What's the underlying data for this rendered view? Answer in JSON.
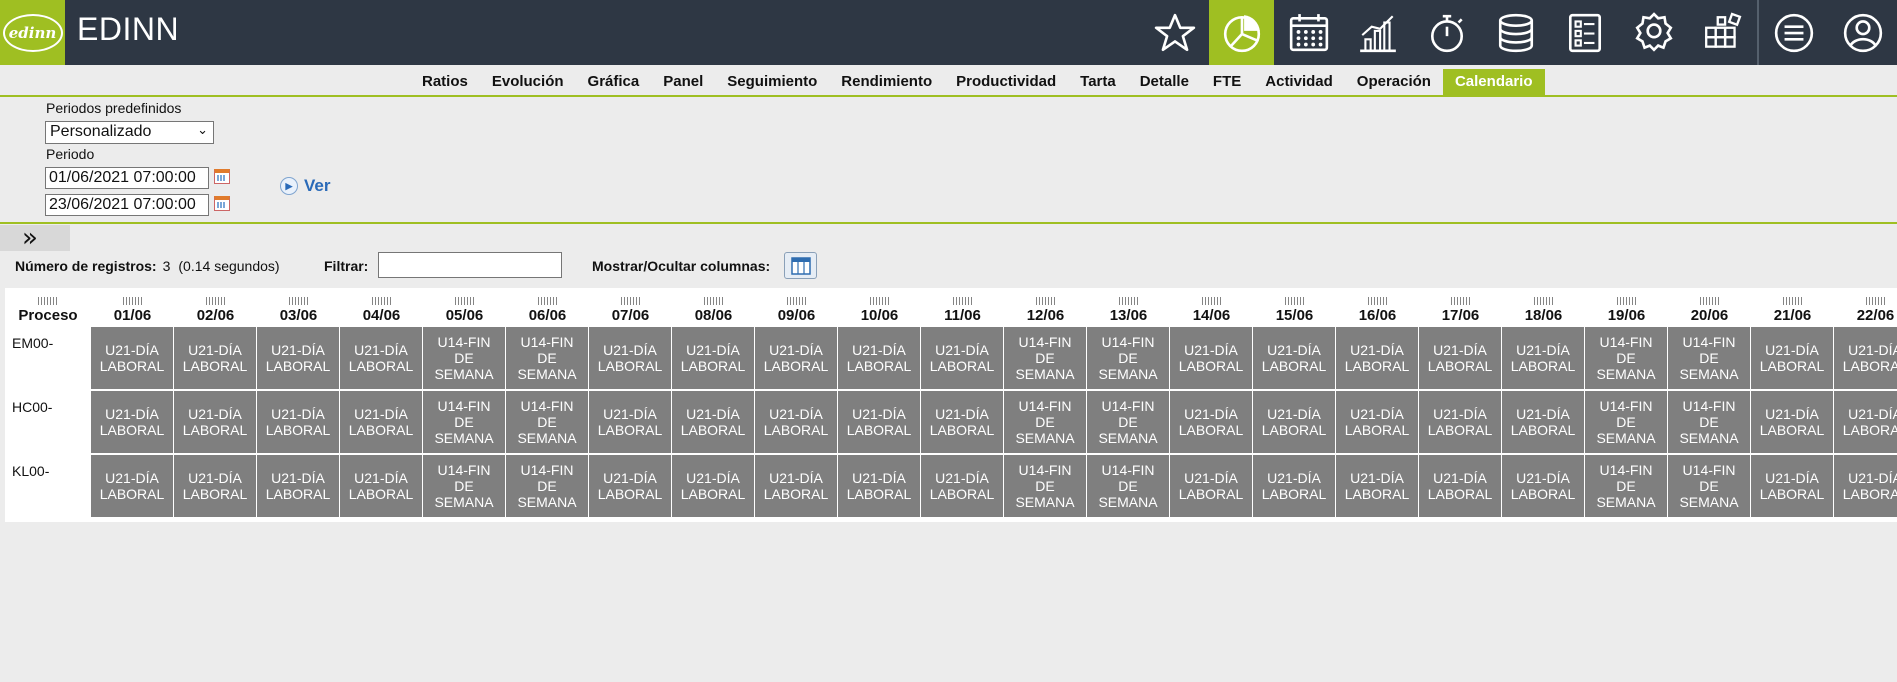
{
  "app": {
    "logo_text": "edinn",
    "title": "EDINN"
  },
  "topbar_icons": [
    {
      "name": "star-icon",
      "active": false
    },
    {
      "name": "pie-chart-icon",
      "active": true
    },
    {
      "name": "calendar-icon",
      "active": false
    },
    {
      "name": "bar-chart-icon",
      "active": false
    },
    {
      "name": "stopwatch-icon",
      "active": false
    },
    {
      "name": "database-icon",
      "active": false
    },
    {
      "name": "checklist-icon",
      "active": false
    },
    {
      "name": "award-icon",
      "active": false
    },
    {
      "name": "grid-blocks-icon",
      "active": false
    },
    {
      "name": "menu-icon",
      "active": false
    },
    {
      "name": "user-icon",
      "active": false
    }
  ],
  "tabs": [
    "Ratios",
    "Evolución",
    "Gráfica",
    "Panel",
    "Seguimiento",
    "Rendimiento",
    "Productividad",
    "Tarta",
    "Detalle",
    "FTE",
    "Actividad",
    "Operación",
    "Calendario"
  ],
  "active_tab": "Calendario",
  "filters": {
    "periodos_label": "Periodos predefinidos",
    "periodos_value": "Personalizado",
    "periodo_label": "Periodo",
    "start": "01/06/2021 07:00:00",
    "end": "23/06/2021 07:00:00",
    "ver_label": "Ver"
  },
  "toolbar": {
    "records_label": "Número de registros:",
    "records_count": "3",
    "records_time": "(0.14 segundos)",
    "filter_label": "Filtrar:",
    "filter_value": "",
    "columns_label": "Mostrar/Ocultar columnas:"
  },
  "table": {
    "first_header": "Proceso",
    "dates": [
      "01/06",
      "02/06",
      "03/06",
      "04/06",
      "05/06",
      "06/06",
      "07/06",
      "08/06",
      "09/06",
      "10/06",
      "11/06",
      "12/06",
      "13/06",
      "14/06",
      "15/06",
      "16/06",
      "17/06",
      "18/06",
      "19/06",
      "20/06",
      "21/06",
      "22/06"
    ],
    "labels": {
      "L": [
        "U21-DÍA",
        "LABORAL"
      ],
      "W": [
        "U14-FIN",
        "DE",
        "SEMANA"
      ]
    },
    "pattern": [
      "L",
      "L",
      "L",
      "L",
      "W",
      "W",
      "L",
      "L",
      "L",
      "L",
      "L",
      "W",
      "W",
      "L",
      "L",
      "L",
      "L",
      "L",
      "W",
      "W",
      "L",
      "L"
    ],
    "rows": [
      "EM00-",
      "HC00-",
      "KL00-"
    ]
  },
  "colors": {
    "topbar": "#2e3744",
    "accent": "#9fbf22",
    "cell": "#7f7f7f"
  }
}
